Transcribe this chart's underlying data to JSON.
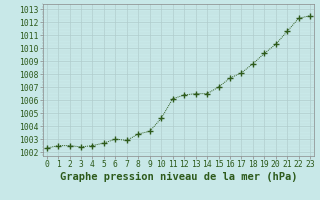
{
  "x": [
    0,
    1,
    2,
    3,
    4,
    5,
    6,
    7,
    8,
    9,
    10,
    11,
    12,
    13,
    14,
    15,
    16,
    17,
    18,
    19,
    20,
    21,
    22,
    23
  ],
  "y": [
    1002.3,
    1002.5,
    1002.5,
    1002.4,
    1002.5,
    1002.7,
    1003.0,
    1002.9,
    1003.4,
    1003.6,
    1004.6,
    1006.1,
    1006.4,
    1006.5,
    1006.5,
    1007.0,
    1007.7,
    1008.1,
    1008.8,
    1009.6,
    1010.3,
    1011.3,
    1012.3,
    1012.5
  ],
  "line_color": "#2d5a1b",
  "marker_color": "#2d5a1b",
  "bg_color": "#c8e8e8",
  "grid_color_major": "#b0cccc",
  "grid_color_minor": "#c0dddd",
  "title": "Graphe pression niveau de la mer (hPa)",
  "xlabel_ticks": [
    0,
    1,
    2,
    3,
    4,
    5,
    6,
    7,
    8,
    9,
    10,
    11,
    12,
    13,
    14,
    15,
    16,
    17,
    18,
    19,
    20,
    21,
    22,
    23
  ],
  "ytick_labels": [
    1002,
    1003,
    1004,
    1005,
    1006,
    1007,
    1008,
    1009,
    1010,
    1011,
    1012,
    1013
  ],
  "ylim": [
    1001.7,
    1013.4
  ],
  "xlim": [
    -0.3,
    23.3
  ],
  "title_fontsize": 7.5,
  "tick_fontsize": 5.8
}
